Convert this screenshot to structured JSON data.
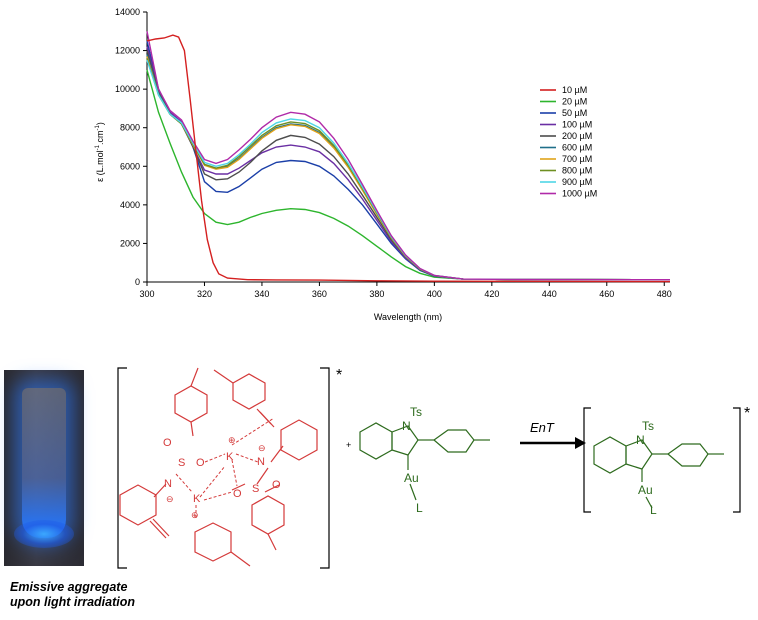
{
  "chart_data": {
    "type": "line",
    "xlabel": "Wavelength (nm)",
    "ylabel_main": "ε (L.mol",
    "ylabel_sup1": "-1",
    "ylabel_mid": ".cm",
    "ylabel_sup2": "-1",
    "ylabel_end": ")",
    "xlim": [
      300,
      482
    ],
    "ylim": [
      0,
      14000
    ],
    "x_ticks": [
      300,
      320,
      340,
      360,
      380,
      400,
      420,
      440,
      460,
      480
    ],
    "y_ticks": [
      0,
      2000,
      4000,
      6000,
      8000,
      10000,
      12000,
      14000
    ],
    "legend_position": "right",
    "series": [
      {
        "name": "10 µM",
        "color": "#d42020",
        "points": [
          [
            300,
            12500
          ],
          [
            303,
            12600
          ],
          [
            306,
            12650
          ],
          [
            309,
            12800
          ],
          [
            311,
            12700
          ],
          [
            313,
            12000
          ],
          [
            315,
            9500
          ],
          [
            317,
            6800
          ],
          [
            319,
            4200
          ],
          [
            321,
            2200
          ],
          [
            323,
            1000
          ],
          [
            325,
            420
          ],
          [
            328,
            200
          ],
          [
            335,
            120
          ],
          [
            345,
            110
          ],
          [
            360,
            100
          ],
          [
            380,
            60
          ],
          [
            400,
            40
          ],
          [
            482,
            20
          ]
        ]
      },
      {
        "name": "20 µM",
        "color": "#2db52d",
        "points": [
          [
            300,
            11000
          ],
          [
            304,
            8800
          ],
          [
            308,
            7200
          ],
          [
            312,
            5700
          ],
          [
            316,
            4400
          ],
          [
            320,
            3550
          ],
          [
            324,
            3100
          ],
          [
            328,
            2980
          ],
          [
            332,
            3100
          ],
          [
            336,
            3350
          ],
          [
            340,
            3550
          ],
          [
            345,
            3720
          ],
          [
            350,
            3800
          ],
          [
            355,
            3760
          ],
          [
            360,
            3600
          ],
          [
            365,
            3300
          ],
          [
            370,
            2900
          ],
          [
            375,
            2400
          ],
          [
            380,
            1850
          ],
          [
            385,
            1300
          ],
          [
            390,
            800
          ],
          [
            395,
            450
          ],
          [
            400,
            250
          ],
          [
            410,
            150
          ],
          [
            430,
            130
          ],
          [
            482,
            120
          ]
        ]
      },
      {
        "name": "50 µM",
        "color": "#1b3fa8",
        "points": [
          [
            300,
            12500
          ],
          [
            304,
            10000
          ],
          [
            308,
            8800
          ],
          [
            312,
            8300
          ],
          [
            316,
            7000
          ],
          [
            320,
            5200
          ],
          [
            324,
            4700
          ],
          [
            328,
            4650
          ],
          [
            332,
            4950
          ],
          [
            336,
            5400
          ],
          [
            340,
            5850
          ],
          [
            345,
            6200
          ],
          [
            350,
            6300
          ],
          [
            355,
            6250
          ],
          [
            360,
            6000
          ],
          [
            365,
            5500
          ],
          [
            370,
            4800
          ],
          [
            375,
            4000
          ],
          [
            380,
            3000
          ],
          [
            385,
            2000
          ],
          [
            390,
            1200
          ],
          [
            395,
            600
          ],
          [
            400,
            300
          ],
          [
            410,
            150
          ],
          [
            430,
            130
          ],
          [
            482,
            120
          ]
        ]
      },
      {
        "name": "100 µM",
        "color": "#6a2fa3",
        "points": [
          [
            300,
            12200
          ],
          [
            304,
            10000
          ],
          [
            308,
            8800
          ],
          [
            312,
            8300
          ],
          [
            316,
            7000
          ],
          [
            320,
            5800
          ],
          [
            324,
            5600
          ],
          [
            328,
            5600
          ],
          [
            332,
            5900
          ],
          [
            336,
            6300
          ],
          [
            340,
            6700
          ],
          [
            345,
            7000
          ],
          [
            350,
            7100
          ],
          [
            355,
            7000
          ],
          [
            360,
            6750
          ],
          [
            365,
            6150
          ],
          [
            370,
            5300
          ],
          [
            375,
            4300
          ],
          [
            380,
            3200
          ],
          [
            385,
            2100
          ],
          [
            390,
            1250
          ],
          [
            395,
            650
          ],
          [
            400,
            320
          ],
          [
            410,
            150
          ],
          [
            430,
            130
          ],
          [
            482,
            120
          ]
        ]
      },
      {
        "name": "200 µM",
        "color": "#4d4d4d",
        "points": [
          [
            300,
            12000
          ],
          [
            304,
            9900
          ],
          [
            308,
            8700
          ],
          [
            312,
            8200
          ],
          [
            316,
            7000
          ],
          [
            320,
            5600
          ],
          [
            324,
            5300
          ],
          [
            328,
            5350
          ],
          [
            332,
            5700
          ],
          [
            336,
            6200
          ],
          [
            340,
            6800
          ],
          [
            345,
            7350
          ],
          [
            350,
            7600
          ],
          [
            355,
            7500
          ],
          [
            360,
            7150
          ],
          [
            365,
            6500
          ],
          [
            370,
            5600
          ],
          [
            375,
            4500
          ],
          [
            380,
            3350
          ],
          [
            385,
            2200
          ],
          [
            390,
            1300
          ],
          [
            395,
            650
          ],
          [
            400,
            320
          ],
          [
            410,
            150
          ],
          [
            430,
            130
          ],
          [
            482,
            120
          ]
        ]
      },
      {
        "name": "600 µM",
        "color": "#1f6f8a",
        "points": [
          [
            300,
            11800
          ],
          [
            304,
            9800
          ],
          [
            308,
            8700
          ],
          [
            312,
            8200
          ],
          [
            316,
            7100
          ],
          [
            320,
            6100
          ],
          [
            324,
            5900
          ],
          [
            328,
            6000
          ],
          [
            332,
            6400
          ],
          [
            336,
            6950
          ],
          [
            340,
            7500
          ],
          [
            345,
            8000
          ],
          [
            350,
            8200
          ],
          [
            355,
            8120
          ],
          [
            360,
            7750
          ],
          [
            365,
            7000
          ],
          [
            370,
            6000
          ],
          [
            375,
            4800
          ],
          [
            380,
            3550
          ],
          [
            385,
            2300
          ],
          [
            390,
            1350
          ],
          [
            395,
            680
          ],
          [
            400,
            330
          ],
          [
            410,
            150
          ],
          [
            430,
            130
          ],
          [
            482,
            120
          ]
        ]
      },
      {
        "name": "700 µM",
        "color": "#e0a31a",
        "points": [
          [
            300,
            11700
          ],
          [
            304,
            9700
          ],
          [
            308,
            8700
          ],
          [
            312,
            8200
          ],
          [
            316,
            7100
          ],
          [
            320,
            6050
          ],
          [
            324,
            5850
          ],
          [
            328,
            5950
          ],
          [
            332,
            6350
          ],
          [
            336,
            6900
          ],
          [
            340,
            7450
          ],
          [
            345,
            7950
          ],
          [
            350,
            8150
          ],
          [
            355,
            8070
          ],
          [
            360,
            7700
          ],
          [
            365,
            6950
          ],
          [
            370,
            5950
          ],
          [
            375,
            4750
          ],
          [
            380,
            3500
          ],
          [
            385,
            2280
          ],
          [
            390,
            1330
          ],
          [
            395,
            670
          ],
          [
            400,
            330
          ],
          [
            410,
            150
          ],
          [
            430,
            130
          ],
          [
            482,
            120
          ]
        ]
      },
      {
        "name": "800 µM",
        "color": "#6e8f22",
        "points": [
          [
            300,
            11600
          ],
          [
            304,
            9700
          ],
          [
            308,
            8700
          ],
          [
            312,
            8200
          ],
          [
            316,
            7150
          ],
          [
            320,
            6100
          ],
          [
            324,
            5900
          ],
          [
            328,
            6050
          ],
          [
            332,
            6500
          ],
          [
            336,
            7050
          ],
          [
            340,
            7600
          ],
          [
            345,
            8100
          ],
          [
            350,
            8300
          ],
          [
            355,
            8220
          ],
          [
            360,
            7850
          ],
          [
            365,
            7080
          ],
          [
            370,
            6050
          ],
          [
            375,
            4850
          ],
          [
            380,
            3570
          ],
          [
            385,
            2320
          ],
          [
            390,
            1350
          ],
          [
            395,
            680
          ],
          [
            400,
            330
          ],
          [
            410,
            150
          ],
          [
            430,
            130
          ],
          [
            482,
            120
          ]
        ]
      },
      {
        "name": "900 µM",
        "color": "#4fd6e6",
        "points": [
          [
            300,
            11500
          ],
          [
            304,
            9700
          ],
          [
            308,
            8700
          ],
          [
            312,
            8250
          ],
          [
            316,
            7200
          ],
          [
            320,
            6200
          ],
          [
            324,
            6000
          ],
          [
            328,
            6150
          ],
          [
            332,
            6600
          ],
          [
            336,
            7150
          ],
          [
            340,
            7750
          ],
          [
            345,
            8250
          ],
          [
            350,
            8450
          ],
          [
            355,
            8370
          ],
          [
            360,
            8000
          ],
          [
            365,
            7200
          ],
          [
            370,
            6150
          ],
          [
            375,
            4920
          ],
          [
            380,
            3620
          ],
          [
            385,
            2350
          ],
          [
            390,
            1370
          ],
          [
            395,
            690
          ],
          [
            400,
            335
          ],
          [
            410,
            150
          ],
          [
            430,
            130
          ],
          [
            482,
            120
          ]
        ]
      },
      {
        "name": "1000 µM",
        "color": "#b02aa8",
        "points": [
          [
            300,
            13000
          ],
          [
            304,
            10000
          ],
          [
            308,
            8900
          ],
          [
            312,
            8400
          ],
          [
            316,
            7300
          ],
          [
            320,
            6350
          ],
          [
            324,
            6150
          ],
          [
            328,
            6350
          ],
          [
            332,
            6850
          ],
          [
            336,
            7400
          ],
          [
            340,
            8000
          ],
          [
            345,
            8550
          ],
          [
            350,
            8800
          ],
          [
            355,
            8700
          ],
          [
            360,
            8300
          ],
          [
            365,
            7450
          ],
          [
            370,
            6350
          ],
          [
            375,
            5050
          ],
          [
            380,
            3700
          ],
          [
            385,
            2400
          ],
          [
            390,
            1400
          ],
          [
            395,
            700
          ],
          [
            400,
            340
          ],
          [
            410,
            150
          ],
          [
            430,
            130
          ],
          [
            482,
            120
          ]
        ]
      }
    ]
  },
  "scheme": {
    "photo_caption_line1": "Emissive aggregate",
    "photo_caption_line2": "upon light irradiation",
    "ent_label": "EnT",
    "plus": "+",
    "star": "*",
    "ts": "Ts",
    "n": "N",
    "au": "Au",
    "l": "L",
    "k": "K",
    "s": "S",
    "o": "O",
    "plus_charge": "⊕",
    "minus_charge": "⊖",
    "red_color": "#d43a3a",
    "green_color": "#2e6b1e"
  }
}
